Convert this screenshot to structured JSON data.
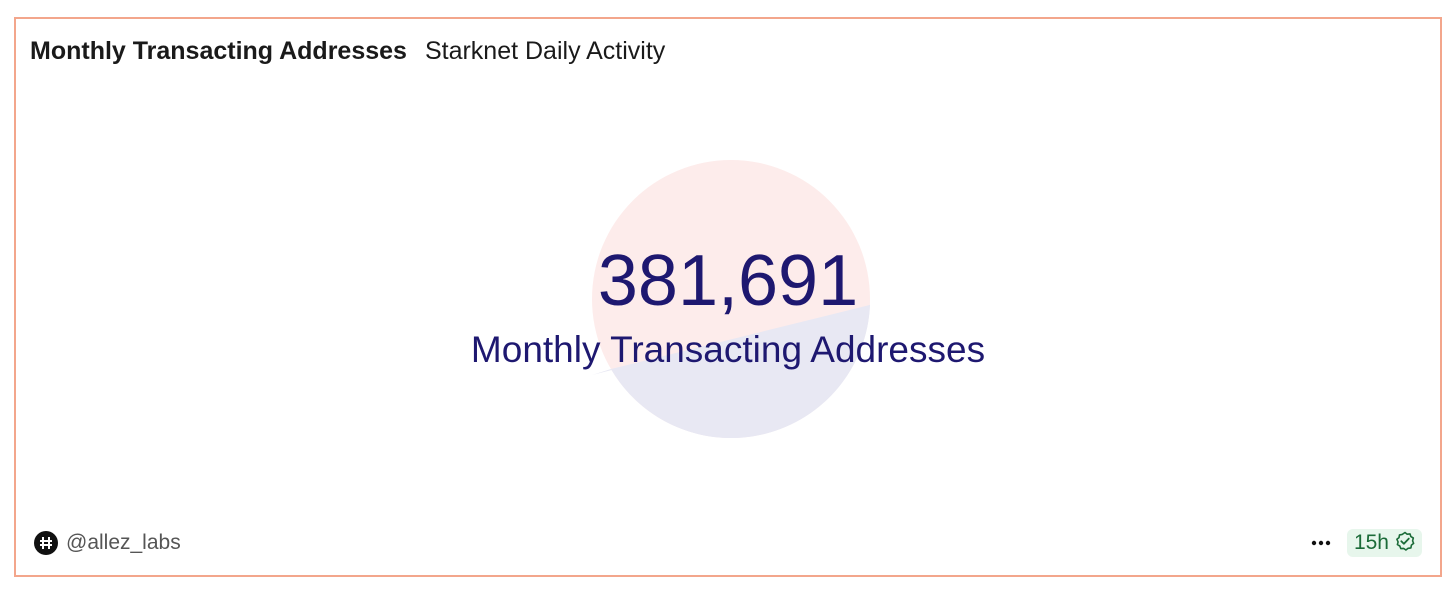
{
  "widget": {
    "title": "Monthly Transacting Addresses",
    "dashboard_name": "Starknet Daily Activity",
    "counter_value": "381,691",
    "counter_label": "Monthly Transacting Addresses"
  },
  "footer": {
    "author": "@allez_labs",
    "avatar_icon": "allez-logo-icon",
    "more_icon": "more-options-icon",
    "freshness": "15h",
    "freshness_icon": "verified-check-icon",
    "freshness_color": "#1b6b38"
  },
  "colors": {
    "border": "#f3a68c",
    "counter_text": "#1e1870",
    "pie_top": "#fdeceb",
    "pie_bottom": "#e8e8f3"
  }
}
